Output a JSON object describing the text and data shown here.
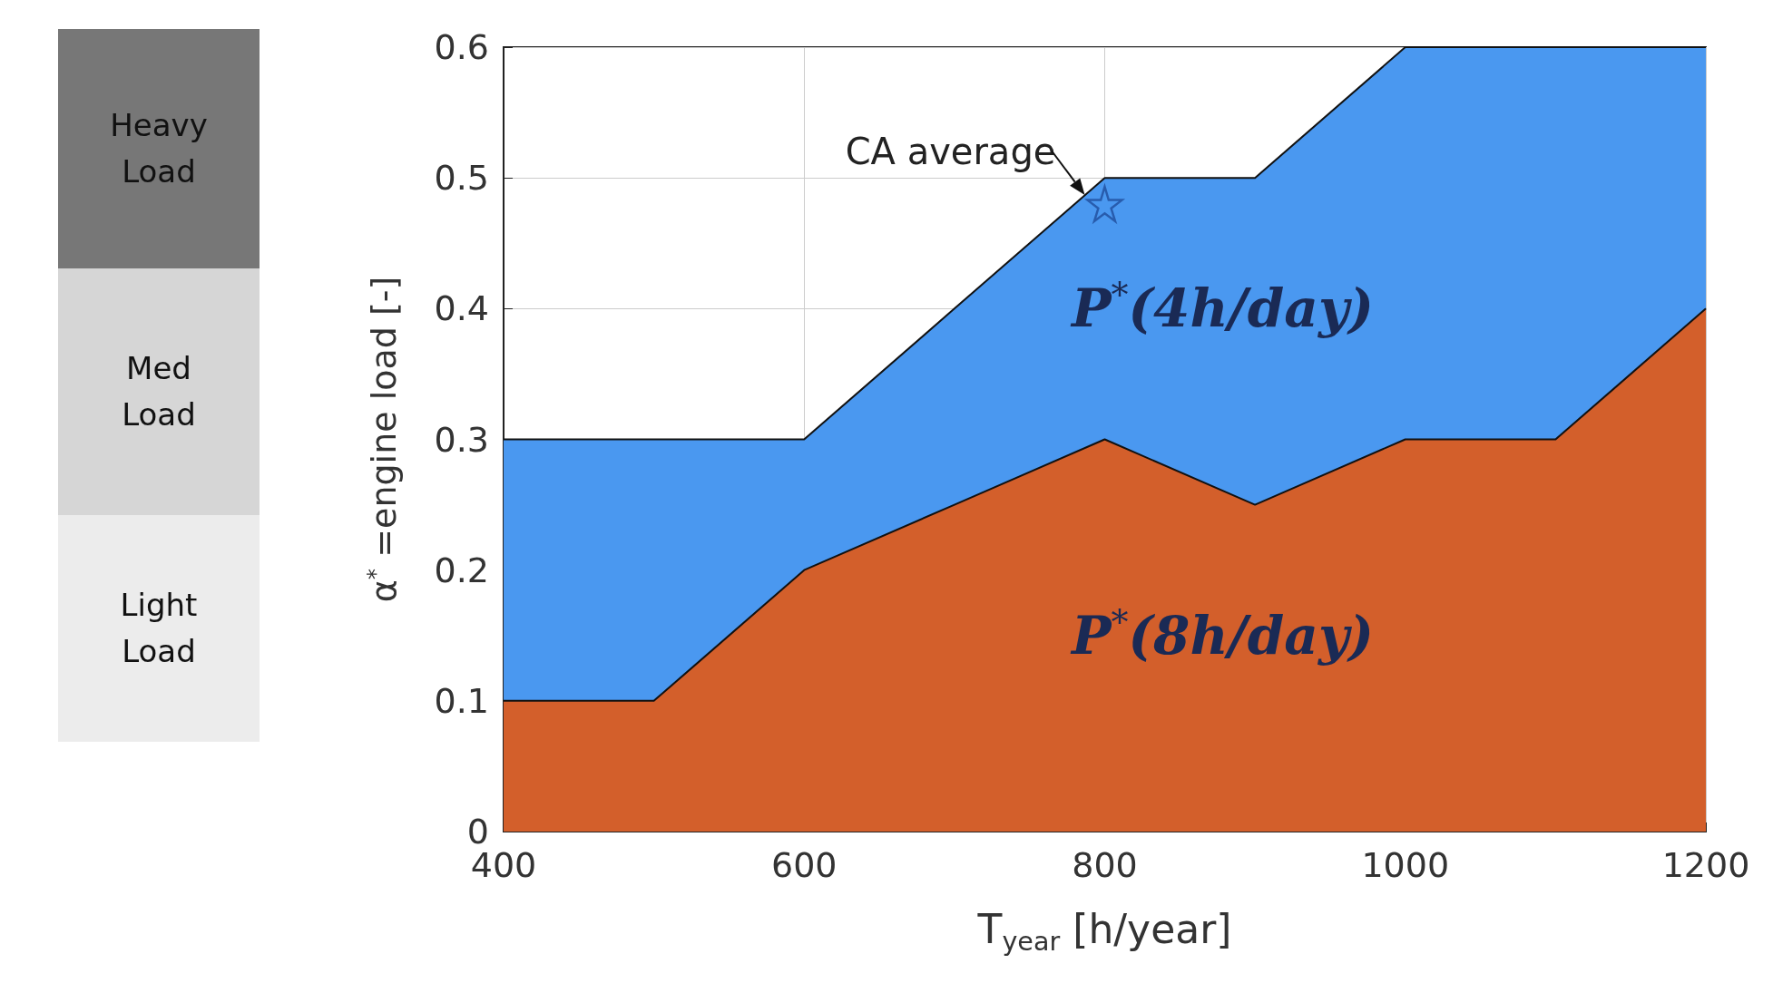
{
  "chart_data": {
    "type": "area",
    "xlabel": "T$_{year}$ [h/year]",
    "ylabel": "α$^{*}$ =engine load [-]",
    "x": [
      400,
      500,
      600,
      700,
      800,
      900,
      1000,
      1100,
      1200
    ],
    "series": [
      {
        "name": "P$^{*}$(4h/day)",
        "color": "#4a98f0",
        "values": [
          0.3,
          0.3,
          0.3,
          0.4,
          0.5,
          0.5,
          0.6,
          0.6,
          0.6
        ]
      },
      {
        "name": "P$^{*}$(8h/day)",
        "color": "#d35f2b",
        "values": [
          0.1,
          0.1,
          0.2,
          0.25,
          0.3,
          0.25,
          0.3,
          0.3,
          0.4
        ]
      },
      {
        "type": "scatter",
        "marker": "star",
        "color": "#1f4e9c",
        "x": [
          800
        ],
        "values": [
          0.48
        ]
      }
    ],
    "xlim": [
      400,
      1200
    ],
    "xticks": [
      400,
      600,
      800,
      1000,
      1200
    ],
    "ylim": [
      0,
      0.6
    ],
    "yticks": [
      0,
      0.1,
      0.2,
      0.3,
      0.4,
      0.5,
      0.6
    ],
    "grid": true,
    "legend": false,
    "annotations": [
      {
        "text": "CA average",
        "x": 800,
        "y": 0.48
      },
      "Heavy Load",
      "Med Load",
      "Light Load"
    ]
  }
}
